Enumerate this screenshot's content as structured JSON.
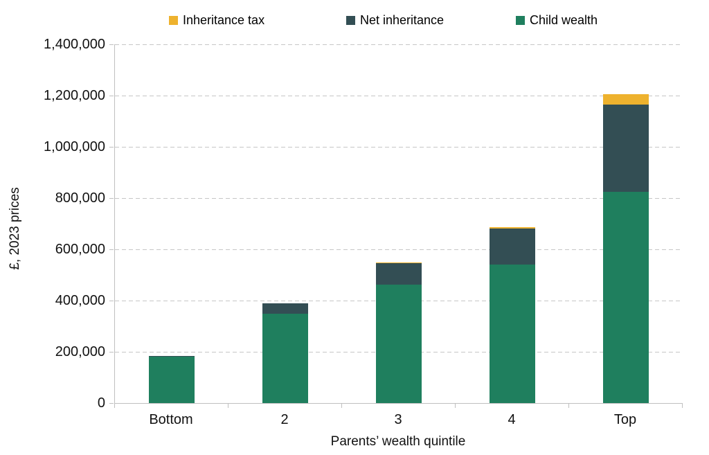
{
  "legend": {
    "items": [
      {
        "label": "Inheritance tax",
        "color": "#EEB22E"
      },
      {
        "label": "Net inheritance",
        "color": "#334E54"
      },
      {
        "label": "Child wealth",
        "color": "#1F7F5E"
      }
    ]
  },
  "axes": {
    "y_title": "£, 2023 prices",
    "x_title": "Parents’ wealth quintile"
  },
  "chart_data": {
    "type": "bar",
    "stacked": true,
    "title": "",
    "categories": [
      "Bottom",
      "2",
      "3",
      "4",
      "Top"
    ],
    "series": [
      {
        "name": "Child wealth",
        "color": "#1F7F5E",
        "values": [
          180000,
          350000,
          462000,
          540000,
          825000
        ]
      },
      {
        "name": "Net inheritance",
        "color": "#334E54",
        "values": [
          4000,
          40000,
          85000,
          142000,
          340000
        ]
      },
      {
        "name": "Inheritance tax",
        "color": "#EEB22E",
        "values": [
          0,
          0,
          3000,
          4000,
          40000
        ]
      }
    ],
    "stack_totals": [
      184000,
      390000,
      550000,
      686000,
      1205000
    ],
    "xlabel": "Parents’ wealth quintile",
    "ylabel": "£, 2023 prices",
    "ylim": [
      0,
      1400000
    ],
    "ytick_step": 200000,
    "ytick_labels": [
      "0",
      "200,000",
      "400,000",
      "600,000",
      "800,000",
      "1,000,000",
      "1,200,000",
      "1,400,000"
    ],
    "grid": {
      "horizontal": true,
      "style": "dashed",
      "color": "#C6C6C6"
    },
    "legend_position": "top",
    "legend_order": [
      "Inheritance tax",
      "Net inheritance",
      "Child wealth"
    ]
  }
}
